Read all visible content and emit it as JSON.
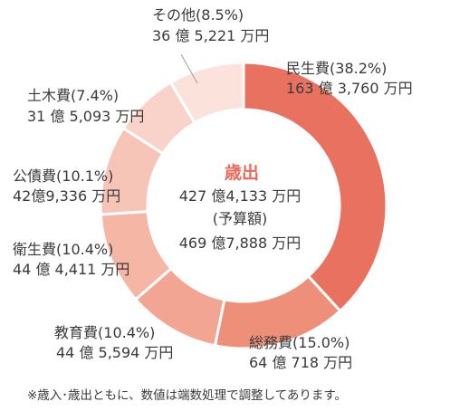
{
  "chart_data": {
    "type": "pie",
    "variant": "donut",
    "center": {
      "title": "歳出",
      "total": "427 億4,133 万円",
      "note": "(予算額)",
      "previous": "469 億7,888 万円"
    },
    "slices": [
      {
        "name": "民生費",
        "percent": 38.2,
        "percent_label": "(38.2%)",
        "amount": "163 億 3,760 万円",
        "color": "#e8715f"
      },
      {
        "name": "総務費",
        "percent": 15.0,
        "percent_label": "(15.0%)",
        "amount": "64 億 718 万円",
        "color": "#ee9079"
      },
      {
        "name": "教育費",
        "percent": 10.4,
        "percent_label": "(10.4%)",
        "amount": "44 億 5,594 万円",
        "color": "#f2a592"
      },
      {
        "name": "衛生費",
        "percent": 10.4,
        "percent_label": "(10.4%)",
        "amount": "44 億 4,411 万円",
        "color": "#f5b6a6"
      },
      {
        "name": "公債費",
        "percent": 10.1,
        "percent_label": "(10.1%)",
        "amount": "42億9,336 万円",
        "color": "#f7c5b8"
      },
      {
        "name": "土木費",
        "percent": 7.4,
        "percent_label": "(7.4%)",
        "amount": "31 億 5,093 万円",
        "color": "#f9d3c9"
      },
      {
        "name": "その他",
        "percent": 8.5,
        "percent_label": "(8.5%)",
        "amount": "36 億 5,221 万円",
        "color": "#fbe3dc"
      }
    ],
    "footnote": "※歳入･歳出ともに、数値は端数処理で調整してあります。"
  }
}
